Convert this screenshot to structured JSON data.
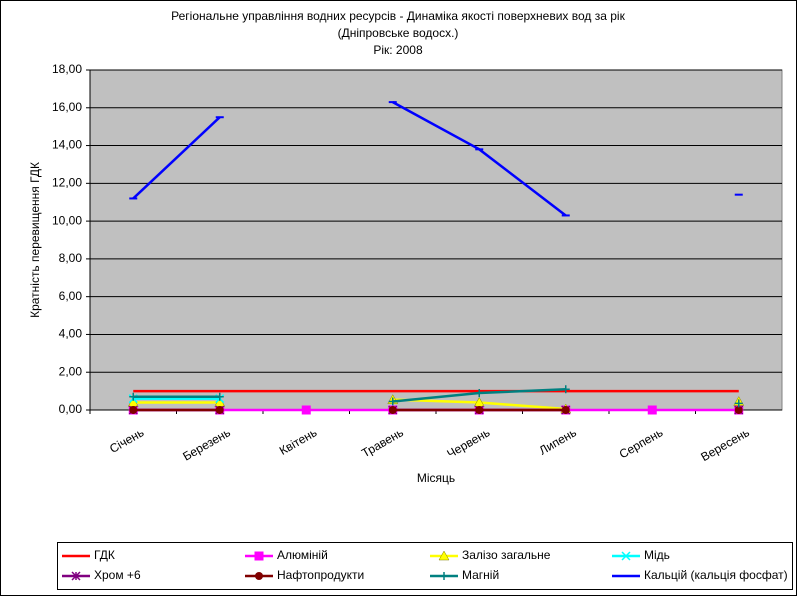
{
  "chart_data": {
    "type": "line",
    "title": [
      "Регіональне управління водних ресурсів - Динаміка якості поверхневих вод за рік",
      "(Дніпровське водосх.)",
      "Рік: 2008"
    ],
    "y_label": "Кратність перевищення ГДК",
    "x_label": "Місяць",
    "categories": [
      "Січень",
      "Березень",
      "Квітень",
      "Травень",
      "Червень",
      "Липень",
      "Серпень",
      "Вересень"
    ],
    "ylim": [
      0,
      18
    ],
    "yticks": [
      {
        "value": 0,
        "label": "0,00"
      },
      {
        "value": 2,
        "label": "2,00"
      },
      {
        "value": 4,
        "label": "4,00"
      },
      {
        "value": 6,
        "label": "6,00"
      },
      {
        "value": 8,
        "label": "8,00"
      },
      {
        "value": 10,
        "label": "10,00"
      },
      {
        "value": 12,
        "label": "12,00"
      },
      {
        "value": 14,
        "label": "14,00"
      },
      {
        "value": 16,
        "label": "16,00"
      },
      {
        "value": 18,
        "label": "18,00"
      }
    ],
    "grid": true,
    "legend": "bottom",
    "series": [
      {
        "name": "ГДК",
        "color": "#ff0000",
        "marker": "none",
        "values": [
          1,
          1,
          1,
          1,
          1,
          1,
          1,
          1
        ]
      },
      {
        "name": "Алюміній",
        "color": "#ff00ff",
        "marker": "square",
        "values": [
          0,
          0,
          0,
          0,
          0,
          0,
          0,
          0
        ]
      },
      {
        "name": "Залізо загальне",
        "color": "#ffff00",
        "marker": "triangle",
        "values": [
          0.4,
          0.4,
          null,
          0.55,
          0.4,
          0.05,
          null,
          0.45
        ]
      },
      {
        "name": "Мідь",
        "color": "#00ffff",
        "marker": "x",
        "values": [
          0.6,
          0.6,
          null,
          null,
          null,
          null,
          null,
          null
        ]
      },
      {
        "name": "Хром +6",
        "color": "#800080",
        "marker": "star",
        "values": [
          0,
          0,
          null,
          0,
          0,
          0,
          null,
          0
        ]
      },
      {
        "name": "Нафтопродукти",
        "color": "#800000",
        "marker": "circle",
        "values": [
          0,
          0,
          null,
          0,
          0,
          0,
          null,
          0
        ]
      },
      {
        "name": "Магній",
        "color": "#008080",
        "marker": "plus",
        "values": [
          0.7,
          0.7,
          null,
          0.45,
          0.9,
          1.1,
          null,
          0.35
        ]
      },
      {
        "name": "Кальцій (кальція фосфат)",
        "color": "#0000ff",
        "marker": "dash",
        "values": [
          11.2,
          15.5,
          null,
          16.3,
          13.8,
          10.3,
          null,
          11.4
        ]
      }
    ]
  }
}
